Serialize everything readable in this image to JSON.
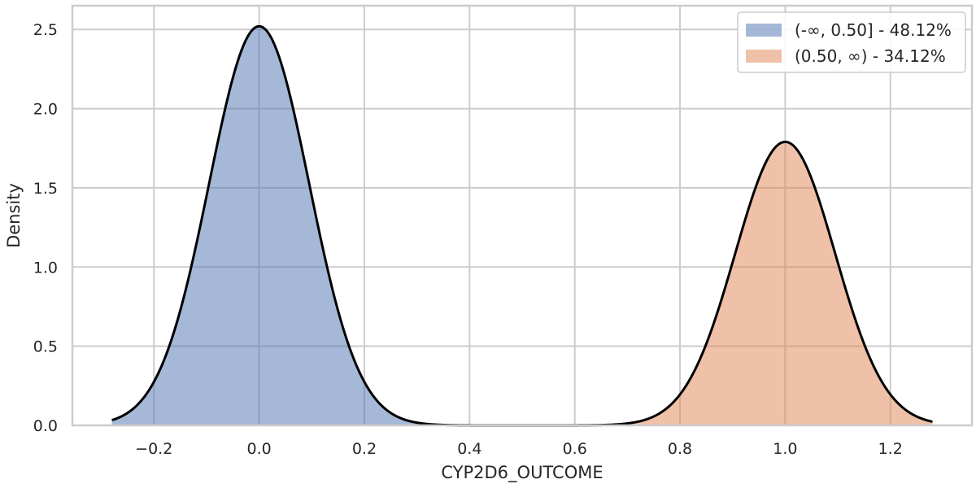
{
  "chart_data": {
    "type": "area",
    "title": "",
    "xlabel": "CYP2D6_OUTCOME",
    "ylabel": "Density",
    "xlim": [
      -0.355,
      1.355
    ],
    "ylim": [
      0,
      2.65
    ],
    "xticks": [
      -0.2,
      0.0,
      0.2,
      0.4,
      0.6,
      0.8,
      1.0,
      1.2
    ],
    "xtick_labels": [
      "−0.2",
      "0.0",
      "0.2",
      "0.4",
      "0.6",
      "0.8",
      "1.0",
      "1.2"
    ],
    "yticks": [
      0.0,
      0.5,
      1.0,
      1.5,
      2.0,
      2.5
    ],
    "ytick_labels": [
      "0.0",
      "0.5",
      "1.0",
      "1.5",
      "2.0",
      "2.5"
    ],
    "grid": true,
    "legend_position": "top-right",
    "density_curve": {
      "x_range": [
        -0.28,
        1.28
      ],
      "split_at": 0.5,
      "components": [
        {
          "mean": 0.0,
          "peak_density": 2.52,
          "sd": 0.095
        },
        {
          "mean": 1.0,
          "peak_density": 1.79,
          "sd": 0.095
        }
      ]
    },
    "series": [
      {
        "name": "(-∞, 0.50] - 48.12%",
        "x_range": [
          -0.28,
          0.5
        ],
        "color": "#4c72b0",
        "opacity": 0.5
      },
      {
        "name": "(0.50, ∞) - 34.12%",
        "x_range": [
          0.5,
          1.28
        ],
        "color": "#dd8452",
        "opacity": 0.5
      }
    ],
    "curve_color": "#000000"
  }
}
